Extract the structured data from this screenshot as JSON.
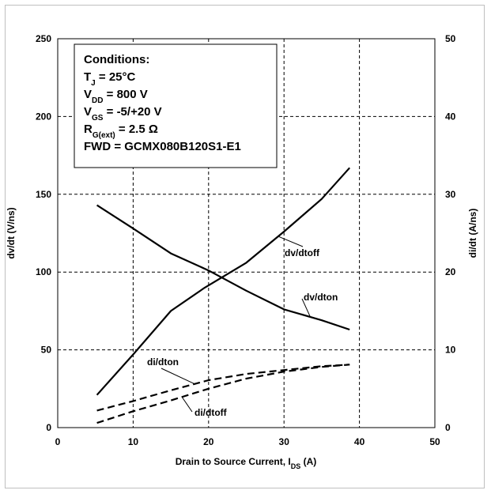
{
  "chart_data": {
    "type": "line",
    "xlabel": "Drain to Source Current, I",
    "xlabel_sub": "DS",
    "xlabel_unit": " (A)",
    "ylabel_left": "dv/dt (V/ns)",
    "ylabel_right": "di/dt (A/ns)",
    "xlim": [
      0,
      50
    ],
    "ylim_left": [
      0,
      250
    ],
    "ylim_right": [
      0,
      50
    ],
    "x_ticks": [
      "0",
      "10",
      "20",
      "30",
      "40",
      "50"
    ],
    "y_left_ticks": [
      "0",
      "50",
      "100",
      "150",
      "200",
      "250"
    ],
    "y_right_ticks": [
      "0",
      "10",
      "20",
      "30",
      "40",
      "50"
    ],
    "grid": true,
    "conditions": {
      "title": "Conditions:",
      "lines": [
        {
          "main": "T",
          "sub": "J",
          "rest": " = 25°C"
        },
        {
          "main": "V",
          "sub": "DD",
          "rest": " = 800 V"
        },
        {
          "main": "V",
          "sub": "GS",
          "rest": " = -5/+20 V"
        },
        {
          "main": "R",
          "sub": "G(ext)",
          "rest": " = 2.5 Ω"
        },
        {
          "main": "FWD = GCMX080B120S1-E1",
          "sub": "",
          "rest": ""
        }
      ]
    },
    "series": [
      {
        "name": "dv/dtoff",
        "axis": "left",
        "style": "solid",
        "x": [
          5.2,
          10,
          15,
          19.5,
          25,
          30,
          35,
          38.7
        ],
        "y": [
          21,
          47,
          75,
          90,
          106,
          126,
          147,
          167
        ]
      },
      {
        "name": "dv/dton",
        "axis": "left",
        "style": "solid",
        "x": [
          5.2,
          10,
          15,
          20,
          25,
          30,
          35,
          38.7
        ],
        "y": [
          143,
          128,
          112,
          101,
          88,
          76,
          69,
          63
        ]
      },
      {
        "name": "di/dton",
        "axis": "right",
        "style": "dashed",
        "x": [
          5.2,
          10,
          15,
          20,
          25,
          30,
          35,
          38.7
        ],
        "y": [
          2.2,
          3.4,
          4.8,
          6.1,
          6.9,
          7.4,
          7.9,
          8.1
        ]
      },
      {
        "name": "di/dtoff",
        "axis": "right",
        "style": "dashed",
        "x": [
          5.2,
          10,
          15,
          20,
          25,
          30,
          35,
          38.7
        ],
        "y": [
          0.6,
          2.1,
          3.5,
          5.0,
          6.3,
          7.2,
          7.8,
          8.1
        ]
      }
    ],
    "labels": [
      {
        "text": "dv/dtoff",
        "series": "dv/dtoff"
      },
      {
        "text": "dv/dton",
        "series": "dv/dton"
      },
      {
        "text": "di/dton",
        "series": "di/dton"
      },
      {
        "text": "di/dtoff",
        "series": "di/dtoff"
      }
    ]
  }
}
